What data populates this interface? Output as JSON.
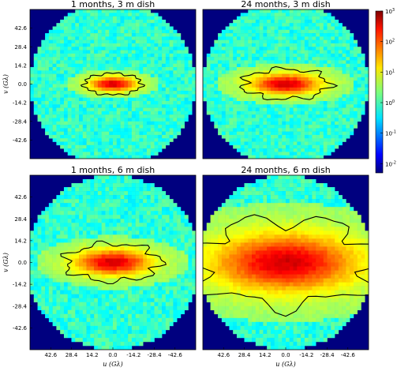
{
  "chart_data": {
    "type": "heatmap",
    "panels": [
      {
        "title": "1 months, 3 m dish",
        "core_width": 0.28,
        "core_height": 0.1,
        "contour_level": 1
      },
      {
        "title": "24 months, 3 m dish",
        "core_width": 0.42,
        "core_height": 0.14,
        "contour_level": 2
      },
      {
        "title": "1 months, 6 m dish",
        "core_width": 0.46,
        "core_height": 0.15,
        "contour_level": 2
      },
      {
        "title": "24 months, 6 m dish",
        "core_width": 0.9,
        "core_height": 0.34,
        "contour_level": 3
      }
    ],
    "x_axis": {
      "label": "u (Gλ)",
      "tick_labels": [
        "42.6",
        "28.4",
        "14.2",
        "0.0",
        "-14.2",
        "-28.4",
        "-42.6"
      ],
      "range": [
        56.8,
        -56.8
      ],
      "reversed": true
    },
    "y_axis": {
      "label": "v (Gλ)",
      "tick_labels": [
        "42.6",
        "28.4",
        "14.2",
        "0.0",
        "-14.2",
        "-28.4",
        "-42.6"
      ],
      "range": [
        -56.8,
        56.8
      ]
    },
    "colorbar": {
      "scale": "log",
      "range": [
        0.005,
        1000
      ],
      "tick_labels": [
        {
          "base": "10",
          "exp": "3",
          "value": 1000
        },
        {
          "base": "10",
          "exp": "2",
          "value": 100
        },
        {
          "base": "10",
          "exp": "1",
          "value": 10
        },
        {
          "base": "10",
          "exp": "0",
          "value": 1
        },
        {
          "base": "10",
          "exp": "-1",
          "value": 0.1
        },
        {
          "base": "10",
          "exp": "-2",
          "value": 0.01
        }
      ],
      "colormap": "jet"
    },
    "background_color": "#00007f"
  }
}
